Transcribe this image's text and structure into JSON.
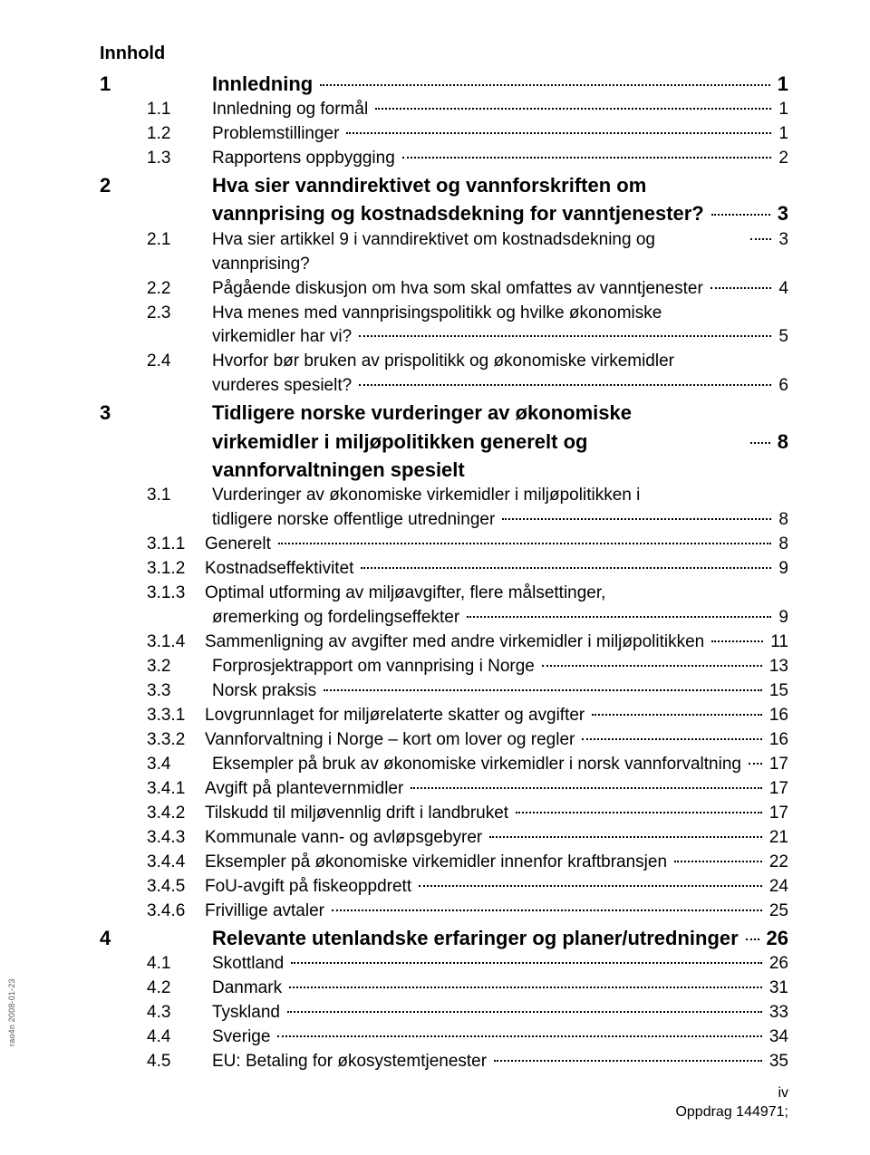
{
  "heading": "Innhold",
  "side_text": "rao4n 2008-01-23",
  "footer": {
    "page": "iv",
    "oppdrag": "Oppdrag 144971;"
  },
  "toc": [
    {
      "level": 1,
      "num": "1",
      "title": "Innledning",
      "page": "1"
    },
    {
      "level": 2,
      "num": "1.1",
      "title": "Innledning og formål",
      "page": "1"
    },
    {
      "level": 2,
      "num": "1.2",
      "title": "Problemstillinger",
      "page": "1"
    },
    {
      "level": 2,
      "num": "1.3",
      "title": "Rapportens oppbygging",
      "page": "2"
    },
    {
      "level": 1,
      "num": "2",
      "title": "Hva sier vanndirektivet og vannforskriften om vannprising og kostnadsdekning for vanntjenester?",
      "page": "3",
      "wrap": true
    },
    {
      "level": 2,
      "num": "2.1",
      "title": "Hva sier artikkel 9 i vanndirektivet om kostnadsdekning og vannprising?",
      "page": "3"
    },
    {
      "level": 2,
      "num": "2.2",
      "title": "Pågående diskusjon om hva som skal omfattes av vanntjenester",
      "page": "4"
    },
    {
      "level": 2,
      "num": "2.3",
      "title": "Hva menes med vannprisingspolitikk og hvilke økonomiske virkemidler har vi?",
      "page": "5",
      "wrap": true
    },
    {
      "level": 2,
      "num": "2.4",
      "title": "Hvorfor bør bruken av prispolitikk og økonomiske virkemidler vurderes spesielt?",
      "page": "6",
      "wrap": true
    },
    {
      "level": 1,
      "num": "3",
      "title": "Tidligere norske vurderinger av økonomiske virkemidler i miljøpolitikken generelt og vannforvaltningen spesielt",
      "page": "8",
      "wrap": true
    },
    {
      "level": 2,
      "num": "3.1",
      "title": "Vurderinger av økonomiske virkemidler i miljøpolitikken i tidligere norske offentlige utredninger",
      "page": "8",
      "wrap": true
    },
    {
      "level": 3,
      "num": "3.1.1",
      "title": "Generelt",
      "page": "8"
    },
    {
      "level": 3,
      "num": "3.1.2",
      "title": "Kostnadseffektivitet",
      "page": "9"
    },
    {
      "level": 3,
      "num": "3.1.3",
      "title": "Optimal utforming av miljøavgifter, flere målsettinger, øremerking og fordelingseffekter",
      "page": "9",
      "wrap": true
    },
    {
      "level": 3,
      "num": "3.1.4",
      "title": "Sammenligning av avgifter med andre virkemidler i miljøpolitikken",
      "page": "11"
    },
    {
      "level": 2,
      "num": "3.2",
      "title": "Forprosjektrapport om vannprising i Norge",
      "page": "13"
    },
    {
      "level": 2,
      "num": "3.3",
      "title": "Norsk praksis",
      "page": "15"
    },
    {
      "level": 3,
      "num": "3.3.1",
      "title": "Lovgrunnlaget for miljørelaterte skatter og avgifter",
      "page": "16"
    },
    {
      "level": 3,
      "num": "3.3.2",
      "title": "Vannforvaltning i Norge – kort om lover og regler",
      "page": "16"
    },
    {
      "level": 2,
      "num": "3.4",
      "title": "Eksempler på bruk av økonomiske virkemidler i norsk vannforvaltning",
      "page": "17"
    },
    {
      "level": 3,
      "num": "3.4.1",
      "title": "Avgift på plantevernmidler",
      "page": "17"
    },
    {
      "level": 3,
      "num": "3.4.2",
      "title": "Tilskudd til miljøvennlig drift i landbruket",
      "page": "17"
    },
    {
      "level": 3,
      "num": "3.4.3",
      "title": "Kommunale vann- og avløpsgebyrer",
      "page": "21"
    },
    {
      "level": 3,
      "num": "3.4.4",
      "title": "Eksempler på økonomiske virkemidler innenfor kraftbransjen",
      "page": "22"
    },
    {
      "level": 3,
      "num": "3.4.5",
      "title": "FoU-avgift på fiskeoppdrett",
      "page": "24"
    },
    {
      "level": 3,
      "num": "3.4.6",
      "title": "Frivillige avtaler",
      "page": "25"
    },
    {
      "level": 1,
      "num": "4",
      "title": "Relevante utenlandske erfaringer og planer/utredninger",
      "page": "26"
    },
    {
      "level": 2,
      "num": "4.1",
      "title": "Skottland",
      "page": "26"
    },
    {
      "level": 2,
      "num": "4.2",
      "title": "Danmark",
      "page": "31"
    },
    {
      "level": 2,
      "num": "4.3",
      "title": "Tyskland",
      "page": "33"
    },
    {
      "level": 2,
      "num": "4.4",
      "title": "Sverige",
      "page": "34"
    },
    {
      "level": 2,
      "num": "4.5",
      "title": "EU: Betaling for økosystemtjenester",
      "page": "35"
    }
  ]
}
